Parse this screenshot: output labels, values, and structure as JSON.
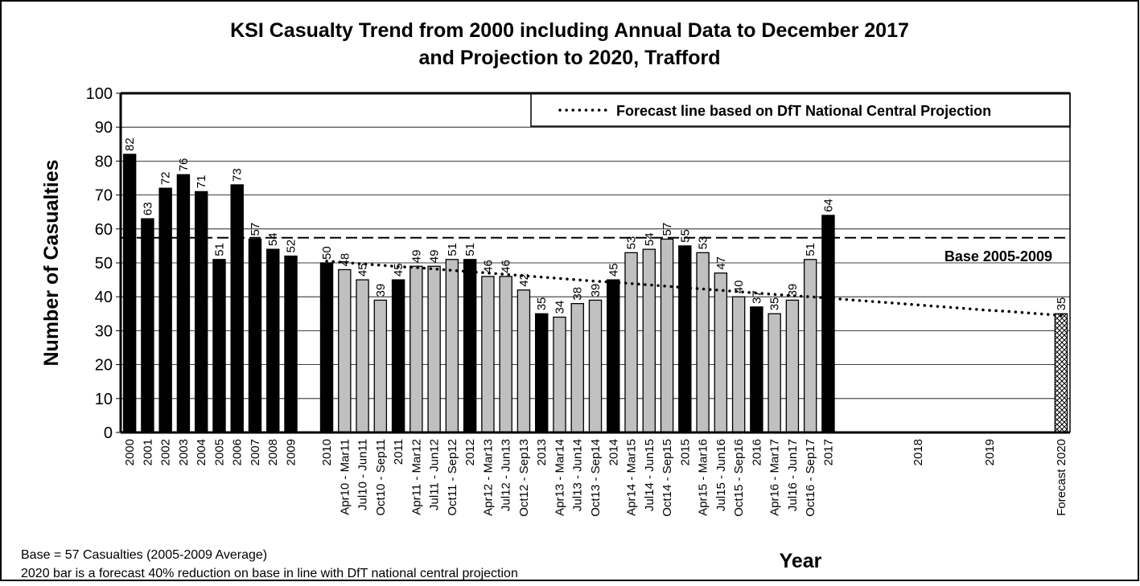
{
  "chart_data": {
    "type": "bar",
    "title": "KSI Casualty Trend from 2000 including Annual Data to December 2017",
    "subtitle": "and Projection to 2020, Trafford",
    "y_label": "Number of Casualties",
    "x_label": "Year",
    "notes": [
      "Base = 57 Casualties (2005-2009 Average)",
      "2020 bar is a forecast 40% reduction on base in line with DfT national central projection"
    ],
    "categories": [
      "2000",
      "2001",
      "2002",
      "2003",
      "2004",
      "2005",
      "2006",
      "2007",
      "2008",
      "2009",
      null,
      "2010",
      "Apr10 - Mar11",
      "Jul10 - Jun11",
      "Oct10 - Sep11",
      "2011",
      "Apr11 - Mar12",
      "Jul11 - Jun12",
      "Oct11 - Sep12",
      "2012",
      "Apr12 - Mar13",
      "Jul12 - Jun13",
      "Oct12 - Sep13",
      "2013",
      "Apr13 - Mar14",
      "Jul13 - Jun14",
      "Oct13 - Sep14",
      "2014",
      "Apr14 - Mar15",
      "Jul14 - Jun15",
      "Oct14 - Sep15",
      "2015",
      "Apr15 - Mar16",
      "Jul15 - Jun16",
      "Oct15 - Sep16",
      "2016",
      "Apr16 - Mar17",
      "Jul16 - Jun17",
      "Oct16 - Sep17",
      "2017",
      null,
      null,
      null,
      null,
      "2018",
      null,
      null,
      null,
      "2019",
      null,
      null,
      null,
      "Forecast 2020"
    ],
    "values": [
      82,
      63,
      72,
      76,
      71,
      51,
      73,
      57,
      54,
      52,
      null,
      50,
      48,
      45,
      39,
      45,
      49,
      49,
      51,
      51,
      46,
      46,
      42,
      35,
      34,
      38,
      39,
      45,
      53,
      54,
      57,
      55,
      53,
      47,
      40,
      37,
      35,
      39,
      51,
      64,
      null,
      null,
      null,
      null,
      null,
      null,
      null,
      null,
      null,
      null,
      null,
      null,
      35
    ],
    "colors": [
      "#000000",
      "#000000",
      "#000000",
      "#000000",
      "#000000",
      "#000000",
      "#000000",
      "#000000",
      "#000000",
      "#000000",
      null,
      "#000000",
      "#c0c0c0",
      "#c0c0c0",
      "#c0c0c0",
      "#000000",
      "#c0c0c0",
      "#c0c0c0",
      "#c0c0c0",
      "#000000",
      "#c0c0c0",
      "#c0c0c0",
      "#c0c0c0",
      "#000000",
      "#c0c0c0",
      "#c0c0c0",
      "#c0c0c0",
      "#000000",
      "#c0c0c0",
      "#c0c0c0",
      "#c0c0c0",
      "#000000",
      "#c0c0c0",
      "#c0c0c0",
      "#c0c0c0",
      "#000000",
      "#c0c0c0",
      "#c0c0c0",
      "#c0c0c0",
      "#000000",
      null,
      null,
      null,
      null,
      null,
      null,
      null,
      null,
      null,
      null,
      null,
      null,
      "hatch"
    ],
    "lines": [
      {
        "name": "Forecast line based on DfT National Central Projection",
        "color": "#000000",
        "style": "dotted",
        "values": [
          null,
          null,
          null,
          null,
          null,
          null,
          null,
          null,
          null,
          null,
          null,
          50.5,
          50.1,
          49.7,
          49.3,
          48.9,
          48.6,
          48.2,
          47.8,
          47.4,
          47.0,
          46.6,
          46.2,
          45.8,
          45.4,
          45.0,
          44.6,
          44.3,
          43.9,
          43.5,
          43.1,
          42.7,
          42.3,
          41.9,
          41.5,
          41.1,
          40.7,
          40.3,
          40.0,
          39.6,
          39.2,
          38.8,
          38.4,
          38.0,
          37.6,
          37.2,
          36.8,
          36.4,
          36.0,
          35.7,
          35.3,
          34.9,
          34.5
        ]
      }
    ],
    "reference_line": {
      "value": 57.4,
      "label": "Base 2005-2009",
      "style": "dashed"
    },
    "legend": "upper right",
    "ylim": [
      0,
      100
    ],
    "yticks": [
      0,
      10,
      20,
      30,
      40,
      50,
      60,
      70,
      80,
      90,
      100
    ],
    "grid": true
  }
}
